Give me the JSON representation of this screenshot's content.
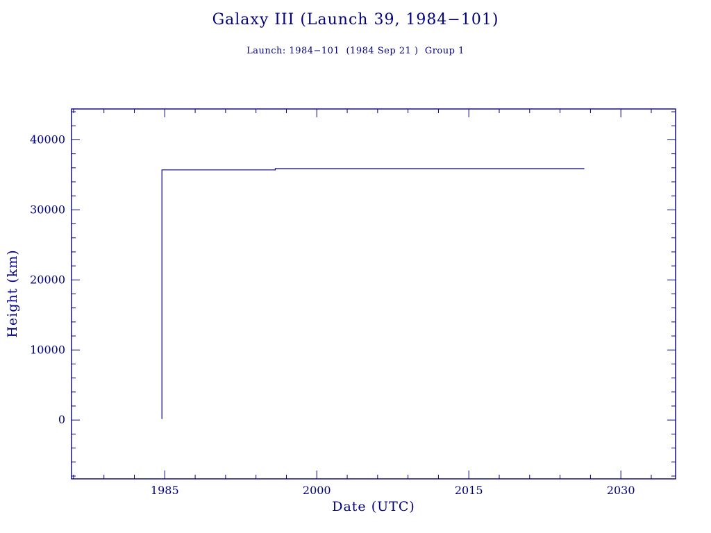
{
  "colors": {
    "ink": "#000080",
    "background": "#ffffff"
  },
  "chart_data": {
    "type": "line",
    "title": "Galaxy III (Launch 39, 1984−101)",
    "subtitle": "Launch: 1984−101  (1984 Sep 21 )  Group 1",
    "xlabel": "Date (UTC)",
    "ylabel": "Height (km)",
    "xlim": [
      1975.8,
      2035.4
    ],
    "ylim": [
      -8400,
      44400
    ],
    "xticks": [
      1985,
      2000,
      2015,
      2030
    ],
    "yticks": [
      0,
      10000,
      20000,
      30000,
      40000
    ],
    "x_minor_step": 3,
    "y_minor_step": 2000,
    "grid": false,
    "legend": "none",
    "line_color": "#000080",
    "series": [
      {
        "name": "height",
        "points": [
          [
            1984.72,
            150
          ],
          [
            1984.72,
            35700
          ],
          [
            1995.9,
            35700
          ],
          [
            1995.9,
            35880
          ],
          [
            2026.4,
            35880
          ]
        ]
      }
    ]
  }
}
